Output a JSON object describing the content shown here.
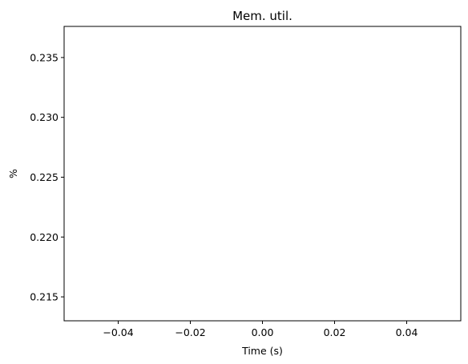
{
  "chart_data": {
    "type": "line",
    "title": "Mem. util.",
    "xlabel": "Time (s)",
    "ylabel": "%",
    "xlim": [
      -0.055,
      0.055
    ],
    "ylim": [
      0.213,
      0.2376
    ],
    "xticks": [
      -0.04,
      -0.02,
      0.0,
      0.02,
      0.04
    ],
    "xtick_labels": [
      "−0.04",
      "−0.02",
      "0.00",
      "0.02",
      "0.04"
    ],
    "yticks": [
      0.215,
      0.22,
      0.225,
      0.23,
      0.235
    ],
    "ytick_labels": [
      "0.215",
      "0.220",
      "0.225",
      "0.230",
      "0.235"
    ],
    "grid": false,
    "series": [
      {
        "x": [],
        "values": []
      }
    ],
    "colors": {
      "axes": "#000000",
      "background": "#ffffff"
    }
  }
}
